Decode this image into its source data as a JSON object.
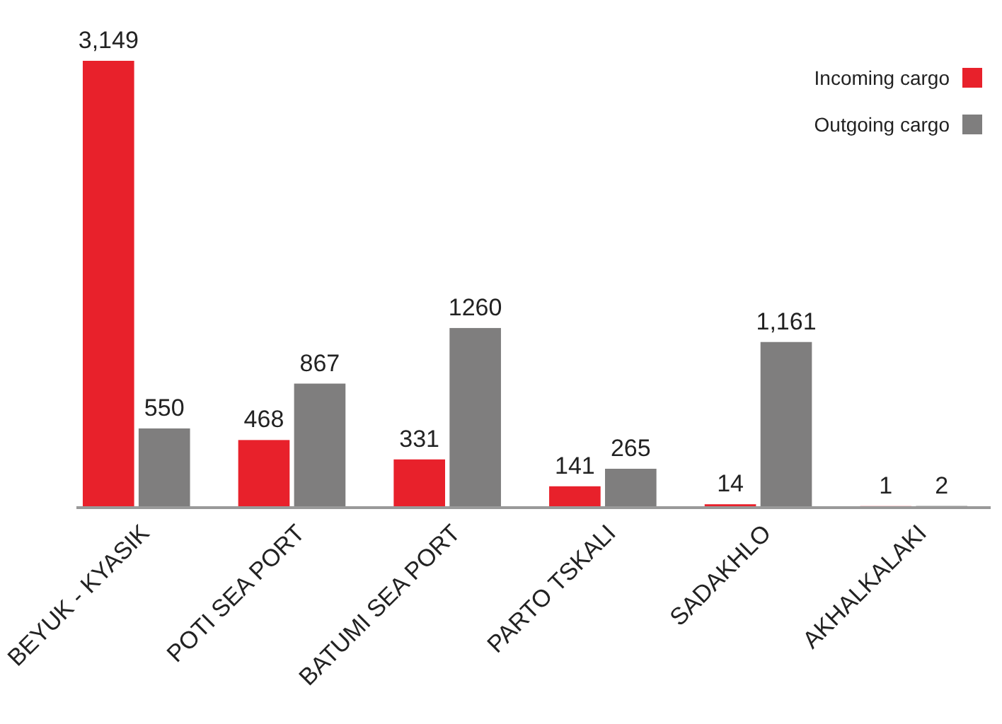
{
  "chart_data": {
    "type": "bar",
    "categories": [
      "BEYUK - KYASIK",
      "POTI SEA PORT",
      "BATUMI SEA PORT",
      "PARTO TSKALI",
      "SADAKHLO",
      "AKHALKALAKI"
    ],
    "series": [
      {
        "name": "Incoming cargo",
        "color": "#e8212b",
        "values": [
          3149,
          468,
          331,
          141,
          14,
          1
        ],
        "value_labels": [
          "3,149",
          "468",
          "331",
          "141",
          "14",
          "1"
        ]
      },
      {
        "name": "Outgoing cargo",
        "color": "#7f7e7e",
        "values": [
          550,
          867,
          1260,
          265,
          1161,
          2
        ],
        "value_labels": [
          "550",
          "867",
          "1260",
          "265",
          "1,161",
          "2"
        ]
      }
    ],
    "legend": "top right"
  }
}
